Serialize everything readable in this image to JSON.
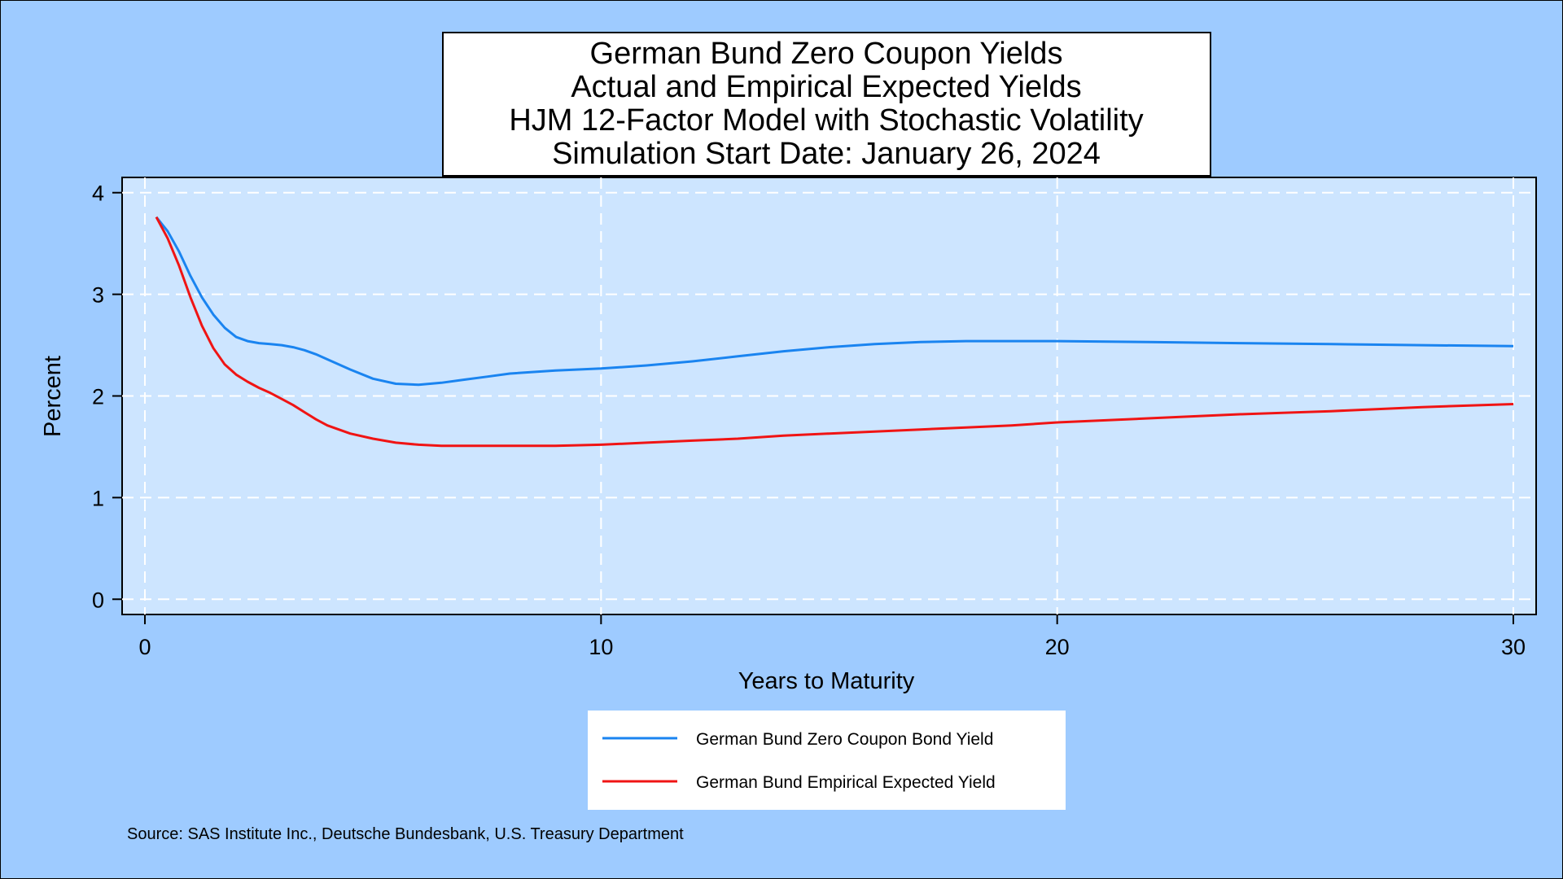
{
  "colors": {
    "background": "#9ecbff",
    "plot_background": "#cde5ff",
    "grid": "#ffffff",
    "series_actual": "#1a84f0",
    "series_expected": "#f01414"
  },
  "chart_data": {
    "type": "line",
    "title": [
      "German Bund Zero Coupon Yields",
      "Actual and Empirical Expected Yields",
      "HJM 12-Factor Model with Stochastic Volatility",
      "Simulation Start Date: January 26, 2024"
    ],
    "xlabel": "Years to Maturity",
    "ylabel": "Percent",
    "xlim": [
      -0.5,
      30.5
    ],
    "ylim": [
      -0.15,
      4.15
    ],
    "xticks": [
      0,
      10,
      20,
      30
    ],
    "yticks": [
      0,
      1,
      2,
      3,
      4
    ],
    "grid": true,
    "legend_position": "bottom",
    "series": [
      {
        "name": "German Bund Zero Coupon Bond Yield",
        "x": [
          0.25,
          0.5,
          0.75,
          1,
          1.25,
          1.5,
          1.75,
          2,
          2.25,
          2.5,
          2.75,
          3,
          3.25,
          3.5,
          3.75,
          4,
          4.5,
          5,
          5.5,
          6,
          6.5,
          7,
          7.5,
          8,
          9,
          10,
          11,
          12,
          13,
          14,
          15,
          16,
          17,
          18,
          19,
          20,
          22,
          24,
          26,
          28,
          30
        ],
        "y": [
          3.76,
          3.62,
          3.42,
          3.18,
          2.97,
          2.8,
          2.67,
          2.58,
          2.54,
          2.52,
          2.51,
          2.5,
          2.48,
          2.45,
          2.41,
          2.36,
          2.26,
          2.17,
          2.12,
          2.11,
          2.13,
          2.16,
          2.19,
          2.22,
          2.25,
          2.27,
          2.3,
          2.34,
          2.39,
          2.44,
          2.48,
          2.51,
          2.53,
          2.54,
          2.54,
          2.54,
          2.53,
          2.52,
          2.51,
          2.5,
          2.49
        ]
      },
      {
        "name": "German Bund Empirical Expected Yield",
        "x": [
          0.25,
          0.5,
          0.75,
          1,
          1.25,
          1.5,
          1.75,
          2,
          2.25,
          2.5,
          2.75,
          3,
          3.25,
          3.5,
          3.75,
          4,
          4.5,
          5,
          5.5,
          6,
          6.5,
          7,
          7.5,
          8,
          9,
          10,
          11,
          12,
          13,
          14,
          15,
          16,
          17,
          18,
          19,
          20,
          22,
          24,
          26,
          28,
          30
        ],
        "y": [
          3.76,
          3.55,
          3.28,
          2.97,
          2.69,
          2.47,
          2.31,
          2.21,
          2.14,
          2.08,
          2.03,
          1.97,
          1.91,
          1.84,
          1.77,
          1.71,
          1.63,
          1.58,
          1.54,
          1.52,
          1.51,
          1.51,
          1.51,
          1.51,
          1.51,
          1.52,
          1.54,
          1.56,
          1.58,
          1.61,
          1.63,
          1.65,
          1.67,
          1.69,
          1.71,
          1.74,
          1.78,
          1.82,
          1.85,
          1.89,
          1.92
        ]
      }
    ]
  },
  "source": "Source: SAS Institute Inc., Deutsche Bundesbank, U.S. Treasury Department"
}
